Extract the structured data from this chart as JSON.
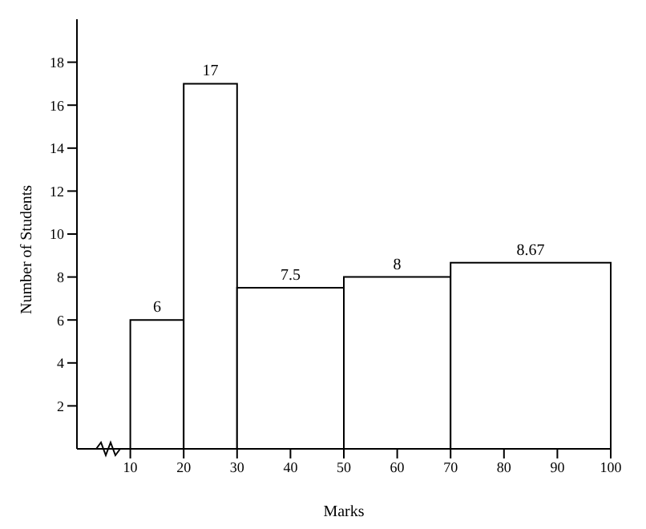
{
  "chart_data": {
    "type": "histogram",
    "xlabel": "Marks",
    "ylabel": "Number of Students",
    "bins": [
      10,
      20,
      30,
      50,
      70,
      100
    ],
    "values": [
      6,
      17,
      7.5,
      8,
      8.67
    ],
    "data_labels": true,
    "xlim": [
      0,
      100
    ],
    "xticks": [
      10,
      20,
      30,
      40,
      50,
      60,
      70,
      80,
      90,
      100
    ],
    "ylim": [
      0,
      20
    ],
    "yticks": [
      2,
      4,
      6,
      8,
      10,
      12,
      14,
      16,
      18
    ],
    "grid": false
  }
}
